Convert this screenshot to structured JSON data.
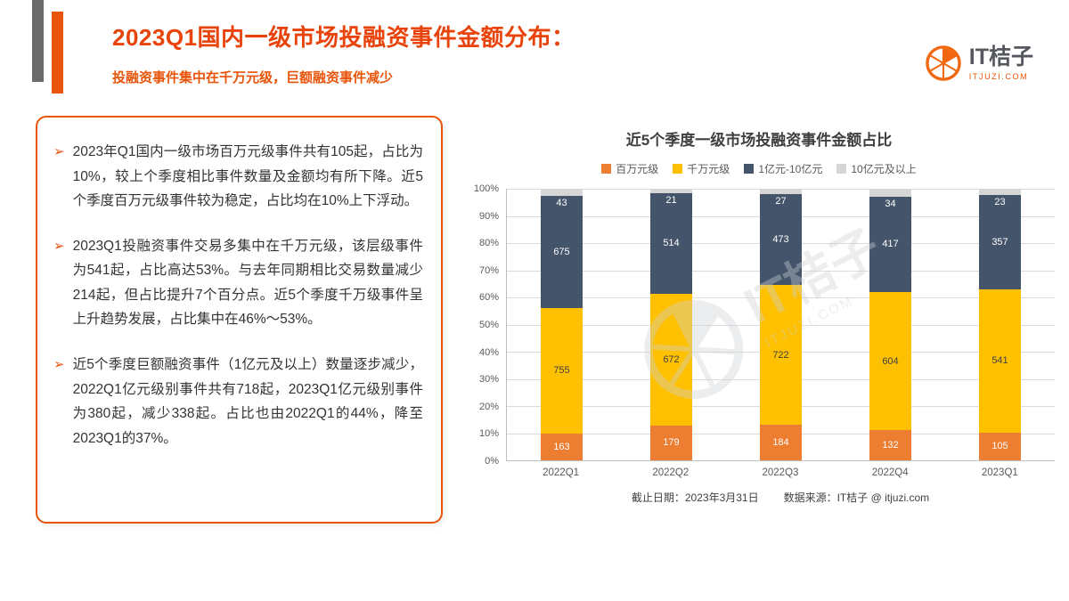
{
  "header": {
    "title": "2023Q1国内一级市场投融资事件金额分布：",
    "subtitle": "投融资事件集中在千万元级，巨额融资事件减少"
  },
  "logo": {
    "name": "IT桔子",
    "domain": "ITJUZI.COM"
  },
  "colors": {
    "accent": "#E8540A",
    "deco_gray": "#6B6B6B"
  },
  "insight_panel": {
    "bullet_icon": "➢",
    "items": [
      "2023年Q1国内一级市场百万元级事件共有105起，占比为10%，较上个季度相比事件数量及金额均有所下降。近5个季度百万元级事件较为稳定，占比均在10%上下浮动。",
      "2023Q1投融资事件交易多集中在千万元级，该层级事件为541起，占比高达53%。与去年同期相比交易数量减少214起，但占比提升7个百分点。近5个季度千万级事件呈上升趋势发展，占比集中在46%～53%。",
      "近5个季度巨额融资事件（1亿元及以上）数量逐步减少，2022Q1亿元级别事件共有718起，2023Q1亿元级别事件为380起，减少338起。占比也由2022Q1的44%，降至2023Q1的37%。"
    ]
  },
  "chart_data": {
    "type": "bar",
    "stacked": true,
    "percent_stacked": true,
    "title": "近5个季度一级市场投融资事件金额占比",
    "categories": [
      "2022Q1",
      "2022Q2",
      "2022Q3",
      "2022Q4",
      "2023Q1"
    ],
    "series": [
      {
        "name": "百万元级",
        "color": "#ED7D31",
        "label_color": "#FFFFFF",
        "values": [
          163,
          179,
          184,
          132,
          105
        ]
      },
      {
        "name": "千万元级",
        "color": "#FFC000",
        "label_color": "#404040",
        "values": [
          755,
          672,
          722,
          604,
          541
        ]
      },
      {
        "name": "1亿元-10亿元",
        "color": "#44546A",
        "label_color": "#FFFFFF",
        "values": [
          675,
          514,
          473,
          417,
          357
        ]
      },
      {
        "name": "10亿元及以上",
        "color": "#D6D6D6",
        "label_color": "#FFFFFF",
        "values": [
          43,
          21,
          27,
          34,
          23
        ]
      }
    ],
    "y_ticks": [
      "100%",
      "90%",
      "80%",
      "70%",
      "60%",
      "50%",
      "40%",
      "30%",
      "20%",
      "10%",
      "0%"
    ],
    "ylim": [
      0,
      100
    ],
    "grid": true,
    "legend_position": "top",
    "footnote": {
      "date": "截止日期：2023年3月31日",
      "source": "数据来源：IT桔子 @ itjuzi.com"
    }
  }
}
